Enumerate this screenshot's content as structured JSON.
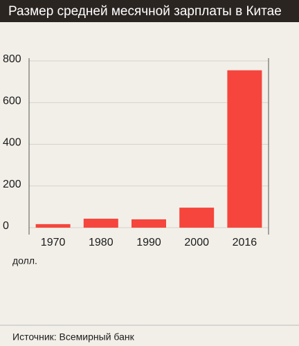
{
  "chart_data": {
    "type": "bar",
    "title": "Размер средней месячной зарплаты в Китае",
    "categories": [
      "1970",
      "1980",
      "1990",
      "2000",
      "2016"
    ],
    "values": [
      17,
      43,
      40,
      96,
      755
    ],
    "color": "#f5453c",
    "ylim": [
      0,
      800
    ],
    "yticks": [
      0,
      200,
      400,
      600,
      800
    ],
    "grid": true,
    "unit_label": "долл.",
    "source": "Источник: Всемирный банк"
  }
}
